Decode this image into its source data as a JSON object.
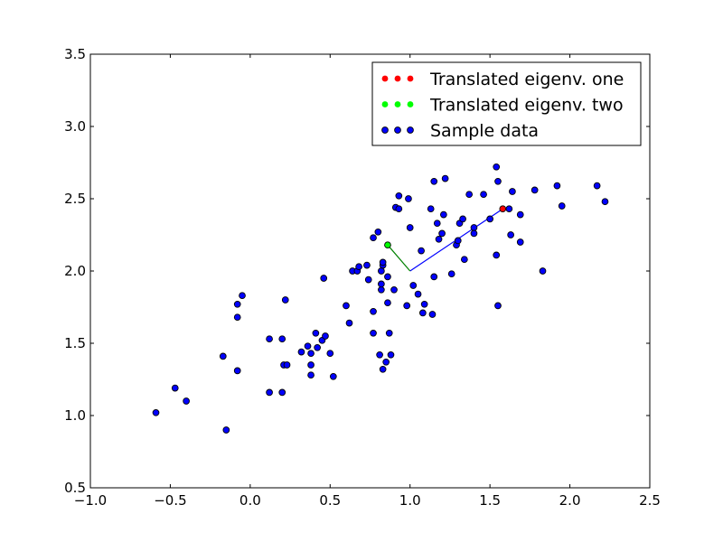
{
  "chart_data": {
    "type": "scatter",
    "title": "",
    "xlabel": "",
    "ylabel": "",
    "xlim": [
      -1.0,
      2.5
    ],
    "ylim": [
      0.5,
      3.5
    ],
    "grid": false,
    "legend_position": "top-right",
    "x_ticks": [
      "−1.0",
      "−0.5",
      "0.0",
      "0.5",
      "1.0",
      "1.5",
      "2.0",
      "2.5"
    ],
    "y_ticks": [
      "0.5",
      "1.0",
      "1.5",
      "2.0",
      "2.5",
      "3.0",
      "3.5"
    ],
    "x_tick_values": [
      -1.0,
      -0.5,
      0.0,
      0.5,
      1.0,
      1.5,
      2.0,
      2.5
    ],
    "y_tick_values": [
      0.5,
      1.0,
      1.5,
      2.0,
      2.5,
      3.0,
      3.5
    ],
    "mean_point": [
      1.0,
      2.0
    ],
    "eigenvector_one": {
      "x": 1.58,
      "y": 2.43,
      "line_color": "#0000ff"
    },
    "eigenvector_two": {
      "x": 0.86,
      "y": 2.18,
      "line_color": "#008000"
    },
    "series": [
      {
        "name": "Translated eigenv. one",
        "color": "#ff0000",
        "points": [
          [
            1.58,
            2.43
          ]
        ]
      },
      {
        "name": "Translated eigenv. two",
        "color": "#00ff00",
        "points": [
          [
            0.86,
            2.18
          ]
        ]
      },
      {
        "name": "Sample data",
        "color": "#0000ff",
        "points": [
          [
            -0.59,
            1.02
          ],
          [
            -0.47,
            1.19
          ],
          [
            -0.4,
            1.1
          ],
          [
            -0.17,
            1.41
          ],
          [
            -0.15,
            0.9
          ],
          [
            -0.08,
            1.31
          ],
          [
            -0.08,
            1.68
          ],
          [
            -0.08,
            1.77
          ],
          [
            -0.05,
            1.83
          ],
          [
            0.12,
            1.16
          ],
          [
            0.12,
            1.53
          ],
          [
            0.2,
            1.16
          ],
          [
            0.2,
            1.53
          ],
          [
            0.21,
            1.35
          ],
          [
            0.22,
            1.8
          ],
          [
            0.23,
            1.35
          ],
          [
            0.32,
            1.44
          ],
          [
            0.36,
            1.48
          ],
          [
            0.38,
            1.35
          ],
          [
            0.38,
            1.28
          ],
          [
            0.38,
            1.43
          ],
          [
            0.41,
            1.57
          ],
          [
            0.42,
            1.47
          ],
          [
            0.45,
            1.52
          ],
          [
            0.46,
            1.95
          ],
          [
            0.47,
            1.55
          ],
          [
            0.5,
            1.43
          ],
          [
            0.52,
            1.27
          ],
          [
            0.6,
            1.76
          ],
          [
            0.62,
            1.64
          ],
          [
            0.64,
            2.0
          ],
          [
            0.67,
            2.0
          ],
          [
            0.68,
            2.03
          ],
          [
            0.73,
            2.04
          ],
          [
            0.74,
            1.94
          ],
          [
            0.77,
            2.23
          ],
          [
            0.77,
            1.72
          ],
          [
            0.77,
            1.57
          ],
          [
            0.8,
            2.27
          ],
          [
            0.81,
            1.42
          ],
          [
            0.82,
            1.87
          ],
          [
            0.82,
            1.91
          ],
          [
            0.82,
            2.0
          ],
          [
            0.83,
            2.04
          ],
          [
            0.83,
            2.06
          ],
          [
            0.83,
            1.32
          ],
          [
            0.85,
            1.37
          ],
          [
            0.86,
            1.78
          ],
          [
            0.86,
            1.96
          ],
          [
            0.87,
            1.57
          ],
          [
            0.88,
            1.42
          ],
          [
            0.9,
            1.87
          ],
          [
            0.91,
            2.44
          ],
          [
            0.93,
            2.43
          ],
          [
            0.93,
            2.52
          ],
          [
            0.98,
            1.76
          ],
          [
            0.99,
            2.5
          ],
          [
            1.0,
            2.3
          ],
          [
            1.02,
            1.9
          ],
          [
            1.05,
            1.84
          ],
          [
            1.07,
            2.14
          ],
          [
            1.08,
            1.71
          ],
          [
            1.09,
            1.77
          ],
          [
            1.13,
            2.43
          ],
          [
            1.14,
            1.7
          ],
          [
            1.15,
            2.62
          ],
          [
            1.15,
            1.96
          ],
          [
            1.17,
            2.33
          ],
          [
            1.18,
            2.22
          ],
          [
            1.2,
            2.26
          ],
          [
            1.21,
            2.39
          ],
          [
            1.22,
            2.64
          ],
          [
            1.26,
            1.98
          ],
          [
            1.29,
            2.18
          ],
          [
            1.3,
            2.21
          ],
          [
            1.31,
            2.33
          ],
          [
            1.33,
            2.36
          ],
          [
            1.34,
            2.08
          ],
          [
            1.37,
            2.53
          ],
          [
            1.4,
            2.3
          ],
          [
            1.4,
            2.26
          ],
          [
            1.46,
            2.53
          ],
          [
            1.5,
            2.36
          ],
          [
            1.54,
            2.11
          ],
          [
            1.54,
            2.72
          ],
          [
            1.55,
            2.62
          ],
          [
            1.55,
            1.76
          ],
          [
            1.62,
            2.43
          ],
          [
            1.63,
            2.25
          ],
          [
            1.64,
            2.55
          ],
          [
            1.69,
            2.39
          ],
          [
            1.69,
            2.2
          ],
          [
            1.78,
            2.56
          ],
          [
            1.83,
            2.0
          ],
          [
            1.92,
            2.59
          ],
          [
            1.95,
            2.45
          ],
          [
            2.17,
            2.59
          ],
          [
            2.22,
            2.48
          ]
        ]
      }
    ]
  }
}
